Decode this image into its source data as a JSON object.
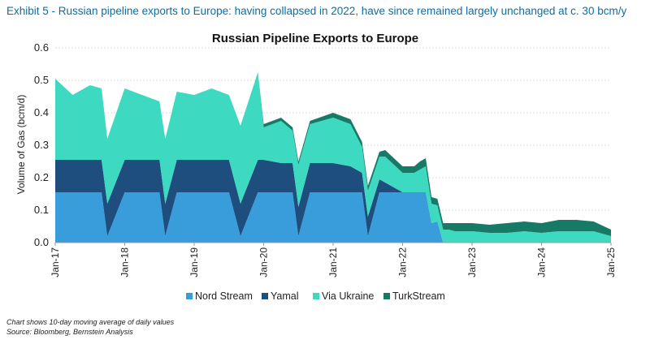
{
  "exhibit_title": "Exhibit 5 - Russian pipeline exports to Europe: having collapsed in 2022, have since remained largely unchanged at c. 30 bcm/y",
  "notes": {
    "note": "Chart shows 10-day moving average of daily values",
    "source": "Source: Bloomberg, Bernstein Analysis"
  },
  "colors": {
    "nord_stream": "#3a9ddb",
    "yamal": "#1d4e7e",
    "via_ukraine": "#3dd9c1",
    "turkstream": "#167a66"
  },
  "chart_data": {
    "type": "area",
    "stacked": true,
    "title": "Russian Pipeline Exports to Europe",
    "xlabel": "",
    "ylabel": "Volume of Gas (bcm/d)",
    "ylim": [
      0,
      0.6
    ],
    "yticks": [
      "0.0",
      "0.1",
      "0.2",
      "0.3",
      "0.4",
      "0.5",
      "0.6"
    ],
    "grid": true,
    "legend_position": "bottom",
    "xticks": [
      "Jan-17",
      "Jan-18",
      "Jan-19",
      "Jan-20",
      "Jan-21",
      "Jan-22",
      "Jan-23",
      "Jan-24",
      "Jan-25"
    ],
    "x": [
      "Jan-17",
      "Apr-17",
      "Jul-17",
      "Sep-17",
      "Oct-17",
      "Jan-18",
      "Apr-18",
      "Jul-18",
      "Aug-18",
      "Oct-18",
      "Jan-19",
      "Apr-19",
      "Jul-19",
      "Sep-19",
      "Dec-19",
      "Jan-20",
      "Apr-20",
      "Jun-20",
      "Jul-20",
      "Sep-20",
      "Jan-21",
      "Apr-21",
      "Jun-21",
      "Jul-21",
      "Sep-21",
      "Oct-21",
      "Jan-22",
      "Mar-22",
      "Apr-22",
      "May-22",
      "Jun-22",
      "Jul-22",
      "Aug-22",
      "Sep-22",
      "Oct-22",
      "Jan-23",
      "Apr-23",
      "Jul-23",
      "Oct-23",
      "Jan-24",
      "Apr-24",
      "Jul-24",
      "Oct-24",
      "Jan-25"
    ],
    "series": [
      {
        "name": "Nord Stream",
        "values": [
          0.155,
          0.155,
          0.155,
          0.155,
          0.02,
          0.155,
          0.155,
          0.155,
          0.02,
          0.155,
          0.155,
          0.155,
          0.155,
          0.02,
          0.155,
          0.155,
          0.155,
          0.155,
          0.02,
          0.155,
          0.155,
          0.155,
          0.155,
          0.02,
          0.155,
          0.155,
          0.155,
          0.155,
          0.155,
          0.155,
          0.06,
          0.065,
          0.0,
          0.0,
          0.0,
          0.0,
          0.0,
          0.0,
          0.0,
          0.0,
          0.0,
          0.0,
          0.0,
          0.0
        ]
      },
      {
        "name": "Yamal",
        "values": [
          0.1,
          0.1,
          0.1,
          0.1,
          0.1,
          0.1,
          0.1,
          0.1,
          0.1,
          0.1,
          0.1,
          0.1,
          0.1,
          0.1,
          0.1,
          0.1,
          0.09,
          0.09,
          0.09,
          0.09,
          0.09,
          0.08,
          0.06,
          0.06,
          0.04,
          0.03,
          0.0,
          0.0,
          0.0,
          0.0,
          0.0,
          0.0,
          0.0,
          0.0,
          0.0,
          0.0,
          0.0,
          0.0,
          0.0,
          0.0,
          0.0,
          0.0,
          0.0,
          0.0
        ]
      },
      {
        "name": "Via Ukraine",
        "values": [
          0.25,
          0.2,
          0.23,
          0.22,
          0.2,
          0.22,
          0.2,
          0.18,
          0.2,
          0.21,
          0.2,
          0.22,
          0.2,
          0.24,
          0.27,
          0.1,
          0.13,
          0.1,
          0.13,
          0.12,
          0.14,
          0.13,
          0.08,
          0.08,
          0.07,
          0.08,
          0.06,
          0.06,
          0.07,
          0.08,
          0.06,
          0.05,
          0.04,
          0.04,
          0.035,
          0.035,
          0.03,
          0.03,
          0.035,
          0.03,
          0.035,
          0.035,
          0.035,
          0.02
        ]
      },
      {
        "name": "TurkStream",
        "values": [
          0.0,
          0.0,
          0.0,
          0.0,
          0.0,
          0.0,
          0.0,
          0.0,
          0.0,
          0.0,
          0.0,
          0.0,
          0.0,
          0.0,
          0.0,
          0.01,
          0.01,
          0.01,
          0.01,
          0.01,
          0.015,
          0.015,
          0.015,
          0.015,
          0.015,
          0.02,
          0.02,
          0.02,
          0.025,
          0.025,
          0.02,
          0.02,
          0.02,
          0.02,
          0.025,
          0.025,
          0.025,
          0.03,
          0.03,
          0.03,
          0.035,
          0.035,
          0.03,
          0.02
        ]
      }
    ]
  }
}
